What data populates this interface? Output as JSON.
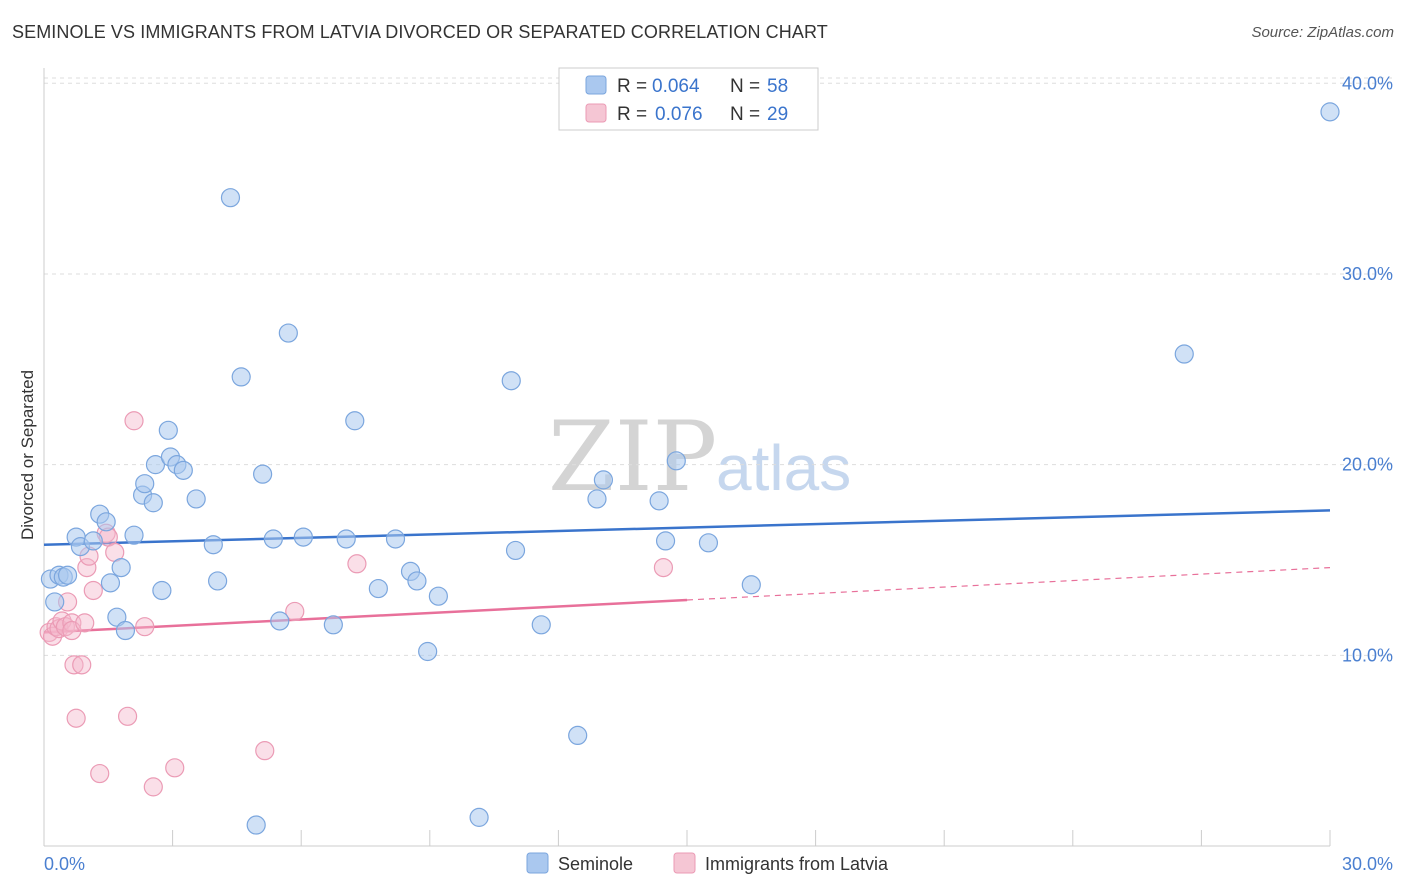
{
  "title": "SEMINOLE VS IMMIGRANTS FROM LATVIA DIVORCED OR SEPARATED CORRELATION CHART",
  "source": "Source: ZipAtlas.com",
  "watermark": {
    "zip": "ZIP",
    "atlas": "atlas"
  },
  "colors": {
    "blue": "#3a74cc",
    "pink": "#e8709a",
    "blue_fill": "#aac8ef",
    "pink_fill": "#f5b8cb",
    "tick": "#4a7fd0"
  },
  "legend": {
    "rows": [
      {
        "r_label": "R =",
        "r_value": "0.064",
        "n_label": "N =",
        "n_value": "58"
      },
      {
        "r_label": "R =",
        "r_value": "0.076",
        "n_label": "N =",
        "n_value": "29"
      }
    ]
  },
  "chart_data": {
    "type": "scatter",
    "title": "SEMINOLE VS IMMIGRANTS FROM LATVIA DIVORCED OR SEPARATED CORRELATION CHART",
    "xlabel": "",
    "ylabel": "Divorced or Separated",
    "xlim": [
      0,
      30
    ],
    "ylim": [
      0,
      40.8
    ],
    "x_tick_labels": [
      "0.0%",
      "30.0%"
    ],
    "y_ticks": [
      10,
      20,
      30,
      40
    ],
    "y_tick_labels": [
      "10.0%",
      "20.0%",
      "30.0%",
      "40.0%"
    ],
    "grid": true,
    "series": [
      {
        "name": "Seminole",
        "R": 0.064,
        "N": 58,
        "trend": {
          "x0": 0,
          "y0": 15.8,
          "x1": 30,
          "y1": 17.6,
          "solid_until": 30
        },
        "points": [
          [
            0.15,
            14.0
          ],
          [
            0.25,
            12.8
          ],
          [
            0.35,
            14.2
          ],
          [
            0.45,
            14.1
          ],
          [
            0.55,
            14.2
          ],
          [
            0.75,
            16.2
          ],
          [
            0.85,
            15.7
          ],
          [
            1.15,
            16.0
          ],
          [
            1.3,
            17.4
          ],
          [
            1.45,
            17.0
          ],
          [
            1.55,
            13.8
          ],
          [
            1.7,
            12.0
          ],
          [
            1.8,
            14.6
          ],
          [
            1.9,
            11.3
          ],
          [
            2.1,
            16.3
          ],
          [
            2.3,
            18.4
          ],
          [
            2.35,
            19.0
          ],
          [
            2.55,
            18.0
          ],
          [
            2.6,
            20.0
          ],
          [
            2.75,
            13.4
          ],
          [
            2.9,
            21.8
          ],
          [
            2.95,
            20.4
          ],
          [
            3.1,
            20.0
          ],
          [
            3.25,
            19.7
          ],
          [
            3.55,
            18.2
          ],
          [
            3.95,
            15.8
          ],
          [
            4.05,
            13.9
          ],
          [
            4.35,
            34.0
          ],
          [
            4.6,
            24.6
          ],
          [
            4.95,
            1.1
          ],
          [
            5.1,
            19.5
          ],
          [
            5.35,
            16.1
          ],
          [
            5.5,
            11.8
          ],
          [
            5.7,
            26.9
          ],
          [
            6.05,
            16.2
          ],
          [
            6.75,
            11.6
          ],
          [
            7.05,
            16.1
          ],
          [
            7.25,
            22.3
          ],
          [
            7.8,
            13.5
          ],
          [
            8.2,
            16.1
          ],
          [
            8.55,
            14.4
          ],
          [
            8.7,
            13.9
          ],
          [
            8.95,
            10.2
          ],
          [
            9.2,
            13.1
          ],
          [
            10.15,
            1.5
          ],
          [
            10.9,
            24.4
          ],
          [
            11.0,
            15.5
          ],
          [
            11.6,
            11.6
          ],
          [
            12.45,
            5.8
          ],
          [
            12.9,
            18.2
          ],
          [
            13.05,
            19.2
          ],
          [
            14.35,
            18.1
          ],
          [
            14.5,
            16.0
          ],
          [
            14.75,
            20.2
          ],
          [
            15.5,
            15.9
          ],
          [
            16.5,
            13.7
          ],
          [
            26.6,
            25.8
          ],
          [
            30.0,
            38.5
          ]
        ]
      },
      {
        "name": "Immigrants from Latvia",
        "R": 0.076,
        "N": 29,
        "trend": {
          "x0": 0,
          "y0": 11.2,
          "x1": 30,
          "y1": 14.6,
          "solid_until": 15
        },
        "points": [
          [
            0.12,
            11.2
          ],
          [
            0.2,
            11.0
          ],
          [
            0.28,
            11.5
          ],
          [
            0.35,
            11.4
          ],
          [
            0.42,
            11.8
          ],
          [
            0.5,
            11.5
          ],
          [
            0.55,
            12.8
          ],
          [
            0.65,
            11.7
          ],
          [
            0.65,
            11.3
          ],
          [
            0.7,
            9.5
          ],
          [
            0.75,
            6.7
          ],
          [
            0.88,
            9.5
          ],
          [
            0.95,
            11.7
          ],
          [
            1.0,
            14.6
          ],
          [
            1.05,
            15.2
          ],
          [
            1.15,
            13.4
          ],
          [
            1.3,
            3.8
          ],
          [
            1.45,
            16.4
          ],
          [
            1.5,
            16.2
          ],
          [
            1.65,
            15.4
          ],
          [
            1.95,
            6.8
          ],
          [
            2.1,
            22.3
          ],
          [
            2.35,
            11.5
          ],
          [
            2.55,
            3.1
          ],
          [
            3.05,
            4.1
          ],
          [
            5.15,
            5.0
          ],
          [
            5.85,
            12.3
          ],
          [
            7.3,
            14.8
          ],
          [
            14.45,
            14.6
          ]
        ]
      }
    ]
  },
  "bottom_legend": [
    {
      "label": "Seminole"
    },
    {
      "label": "Immigrants from Latvia"
    }
  ]
}
